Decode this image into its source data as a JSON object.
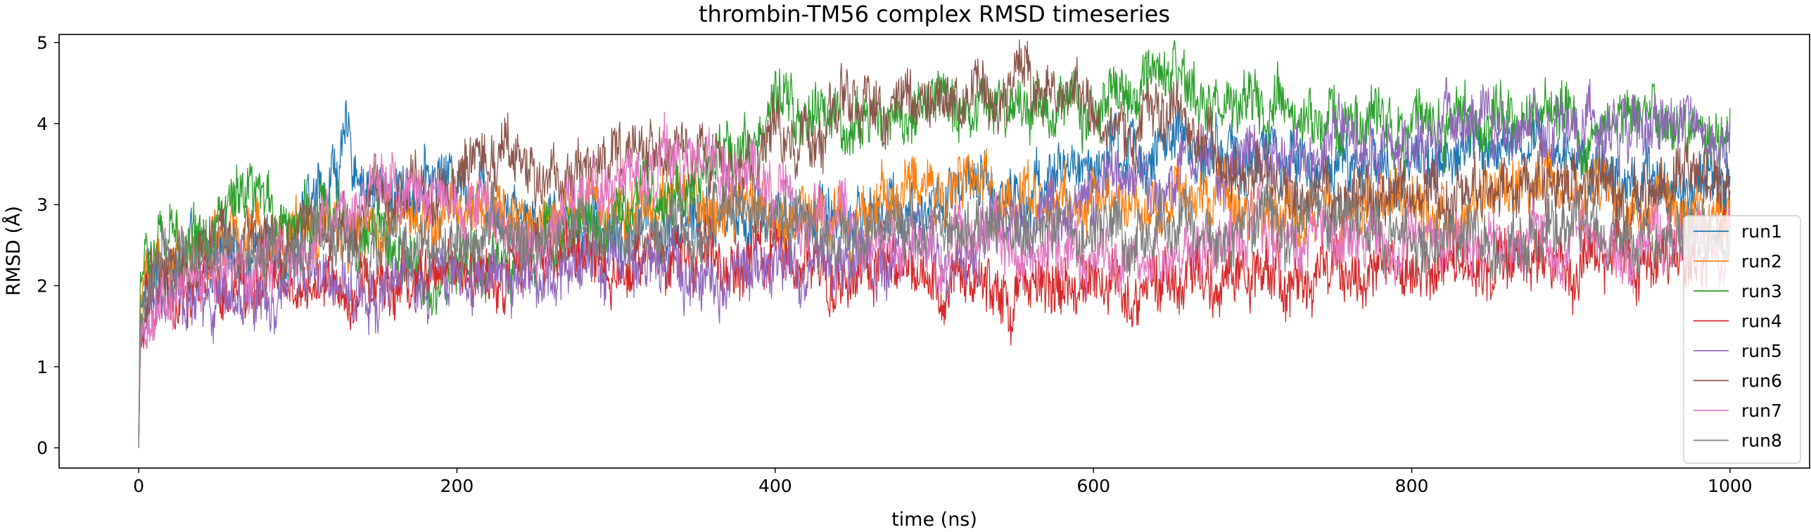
{
  "chart_data": {
    "type": "line",
    "title": "thrombin-TM56 complex RMSD timeseries",
    "xlabel": "time (ns)",
    "ylabel": "RMSD (Å)",
    "xlim": [
      -50,
      1050
    ],
    "ylim": [
      -0.25,
      5.1
    ],
    "xticks": [
      0,
      200,
      400,
      600,
      800,
      1000
    ],
    "yticks": [
      0,
      1,
      2,
      3,
      4,
      5
    ],
    "grid": false,
    "legend_position": "right",
    "series": [
      {
        "name": "run1",
        "color": "#1f77b4",
        "x": [
          0,
          1,
          5,
          20,
          50,
          100,
          130,
          150,
          200,
          250,
          300,
          350,
          400,
          450,
          500,
          550,
          600,
          650,
          700,
          750,
          800,
          850,
          900,
          950,
          1000
        ],
        "values": [
          0.0,
          1.6,
          2.0,
          2.2,
          2.3,
          2.6,
          3.7,
          3.1,
          3.4,
          2.9,
          2.7,
          2.8,
          2.8,
          2.9,
          3.0,
          3.2,
          3.5,
          3.7,
          3.6,
          3.5,
          3.5,
          3.7,
          3.6,
          3.3,
          3.4
        ]
      },
      {
        "name": "run2",
        "color": "#ff7f0e",
        "x": [
          0,
          1,
          5,
          20,
          50,
          100,
          150,
          200,
          250,
          300,
          350,
          400,
          450,
          500,
          550,
          600,
          650,
          700,
          750,
          800,
          850,
          900,
          950,
          1000
        ],
        "values": [
          0.0,
          1.7,
          2.2,
          2.4,
          2.5,
          2.7,
          2.8,
          2.9,
          2.8,
          3.0,
          3.0,
          2.8,
          2.9,
          3.3,
          3.1,
          3.0,
          3.1,
          2.9,
          2.9,
          2.9,
          3.0,
          3.3,
          3.0,
          2.9
        ]
      },
      {
        "name": "run3",
        "color": "#2ca02c",
        "x": [
          0,
          1,
          5,
          20,
          50,
          100,
          150,
          180,
          200,
          250,
          300,
          350,
          400,
          450,
          500,
          550,
          600,
          650,
          700,
          750,
          800,
          850,
          900,
          950,
          1000
        ],
        "values": [
          0.0,
          2.1,
          2.4,
          2.5,
          2.9,
          2.9,
          2.6,
          2.0,
          2.1,
          2.5,
          2.9,
          3.3,
          4.1,
          4.0,
          4.2,
          4.3,
          4.2,
          4.4,
          4.1,
          4.0,
          4.1,
          4.0,
          4.0,
          4.0,
          3.9
        ]
      },
      {
        "name": "run4",
        "color": "#d62728",
        "x": [
          0,
          1,
          5,
          20,
          50,
          100,
          150,
          200,
          250,
          300,
          350,
          400,
          450,
          500,
          550,
          600,
          650,
          700,
          750,
          800,
          850,
          900,
          950,
          1000
        ],
        "values": [
          0.0,
          1.1,
          1.6,
          1.8,
          1.9,
          2.0,
          2.0,
          2.1,
          2.3,
          2.3,
          2.3,
          2.3,
          2.2,
          2.0,
          2.0,
          2.0,
          2.0,
          2.2,
          2.1,
          2.2,
          2.3,
          2.2,
          2.4,
          2.5
        ]
      },
      {
        "name": "run5",
        "color": "#9467bd",
        "x": [
          0,
          1,
          5,
          20,
          50,
          100,
          150,
          200,
          250,
          300,
          350,
          400,
          450,
          500,
          550,
          600,
          650,
          700,
          750,
          800,
          850,
          900,
          950,
          1000
        ],
        "values": [
          0.0,
          1.3,
          1.6,
          1.8,
          1.8,
          2.0,
          1.9,
          2.2,
          2.1,
          2.3,
          2.2,
          2.2,
          2.3,
          2.5,
          2.7,
          3.2,
          3.4,
          3.6,
          3.7,
          3.8,
          3.9,
          3.9,
          4.0,
          3.9
        ]
      },
      {
        "name": "run6",
        "color": "#8c564b",
        "x": [
          0,
          1,
          5,
          20,
          50,
          100,
          150,
          200,
          230,
          250,
          280,
          300,
          350,
          400,
          450,
          500,
          550,
          590,
          600,
          650,
          700,
          750,
          800,
          850,
          900,
          950,
          1000
        ],
        "values": [
          0.0,
          1.4,
          1.9,
          2.2,
          2.4,
          2.7,
          3.0,
          3.3,
          3.9,
          3.2,
          3.7,
          3.4,
          3.5,
          3.6,
          4.2,
          4.3,
          4.3,
          4.5,
          3.9,
          4.0,
          3.3,
          3.1,
          3.1,
          3.3,
          3.2,
          3.2,
          3.2
        ]
      },
      {
        "name": "run7",
        "color": "#e377c2",
        "x": [
          0,
          1,
          5,
          20,
          50,
          100,
          150,
          200,
          250,
          300,
          350,
          400,
          450,
          500,
          550,
          600,
          650,
          700,
          750,
          800,
          850,
          900,
          950,
          1000
        ],
        "values": [
          0.0,
          1.2,
          1.5,
          1.9,
          2.2,
          2.6,
          3.1,
          2.9,
          2.7,
          3.2,
          3.7,
          3.2,
          2.6,
          2.4,
          2.4,
          2.3,
          2.5,
          2.6,
          2.5,
          2.4,
          2.5,
          2.6,
          2.5,
          2.6
        ]
      },
      {
        "name": "run8",
        "color": "#7f7f7f",
        "x": [
          0,
          1,
          5,
          20,
          50,
          100,
          150,
          200,
          250,
          300,
          350,
          400,
          450,
          500,
          550,
          600,
          650,
          700,
          750,
          800,
          850,
          900,
          950,
          1000
        ],
        "values": [
          0.0,
          1.5,
          2.0,
          2.3,
          2.4,
          2.5,
          2.6,
          2.5,
          2.6,
          2.6,
          2.7,
          2.8,
          2.6,
          2.7,
          2.8,
          2.6,
          2.6,
          2.7,
          2.8,
          2.6,
          2.6,
          2.6,
          2.6,
          2.6
        ]
      }
    ]
  }
}
